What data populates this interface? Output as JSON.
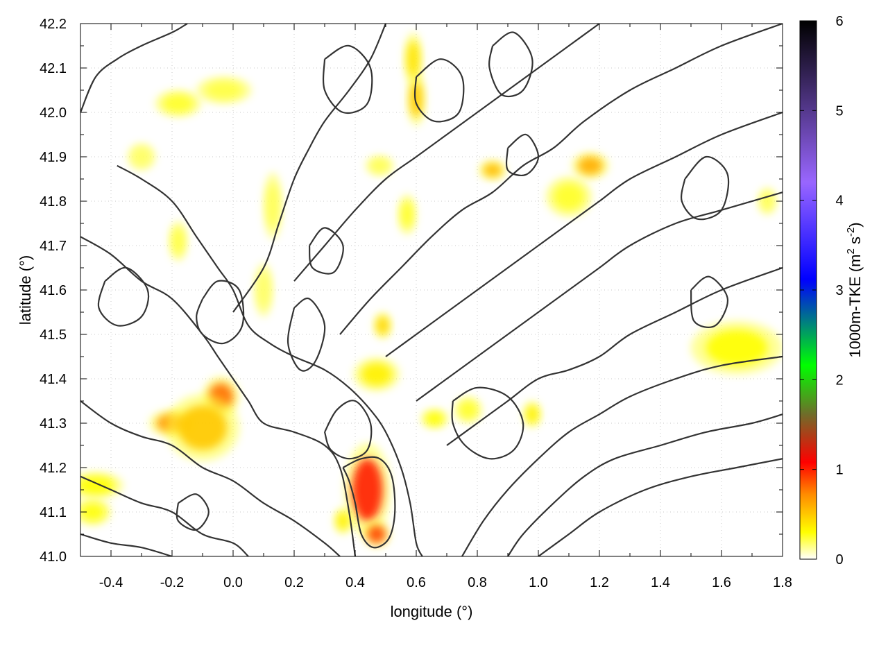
{
  "chart_data": {
    "type": "heatmap",
    "title": "",
    "xlabel": "longitude (°)",
    "ylabel": "latitude (°)",
    "colorbar_label_main": "1000m-TKE (m",
    "colorbar_label_exp1": "2",
    "colorbar_label_mid": " s",
    "colorbar_label_exp2": "-2",
    "colorbar_label_end": ")",
    "xlim": [
      -0.5,
      1.8
    ],
    "ylim": [
      41.0,
      42.2
    ],
    "clim": [
      0,
      6
    ],
    "grid": true,
    "xticks": [
      -0.4,
      -0.2,
      0.0,
      0.2,
      0.4,
      0.6,
      0.8,
      1.0,
      1.2,
      1.4,
      1.6,
      1.8
    ],
    "xtick_labels": [
      "-0.4",
      "-0.2",
      "0.0",
      "0.2",
      "0.4",
      "0.6",
      "0.8",
      "1.0",
      "1.2",
      "1.4",
      "1.6",
      "1.8"
    ],
    "yticks": [
      41.0,
      41.1,
      41.2,
      41.3,
      41.4,
      41.5,
      41.6,
      41.7,
      41.8,
      41.9,
      42.0,
      42.1,
      42.2
    ],
    "ytick_labels": [
      "41.0",
      "41.1",
      "41.2",
      "41.3",
      "41.4",
      "41.5",
      "41.6",
      "41.7",
      "41.8",
      "41.9",
      "42.0",
      "42.1",
      "42.2"
    ],
    "cticks": [
      0,
      1,
      2,
      3,
      4,
      5,
      6
    ],
    "ctick_labels": [
      "0",
      "1",
      "2",
      "3",
      "4",
      "5",
      "6"
    ],
    "colormap": [
      "#ffffff",
      "#ffff00",
      "#ff8c00",
      "#ff0000",
      "#6e6e2a",
      "#00ff00",
      "#0000ff",
      "#9966ff",
      "#000000"
    ],
    "contour_color": "#333333",
    "hotspots": [
      {
        "lon": 0.44,
        "lat": 41.15,
        "value": 1.0,
        "rx": 0.05,
        "ry": 0.07
      },
      {
        "lon": 0.47,
        "lat": 41.05,
        "value": 0.9,
        "rx": 0.03,
        "ry": 0.02
      },
      {
        "lon": -0.04,
        "lat": 41.36,
        "value": 0.8,
        "rx": 0.04,
        "ry": 0.03
      },
      {
        "lon": -0.2,
        "lat": 41.3,
        "value": 0.7,
        "rx": 0.05,
        "ry": 0.02
      },
      {
        "lon": -0.1,
        "lat": 41.29,
        "value": 0.5,
        "rx": 0.08,
        "ry": 0.05
      },
      {
        "lon": 1.17,
        "lat": 41.88,
        "value": 0.6,
        "rx": 0.04,
        "ry": 0.02
      },
      {
        "lon": 0.85,
        "lat": 41.87,
        "value": 0.55,
        "rx": 0.03,
        "ry": 0.015
      },
      {
        "lon": 0.6,
        "lat": 42.03,
        "value": 0.5,
        "rx": 0.02,
        "ry": 0.04
      },
      {
        "lon": 0.59,
        "lat": 42.12,
        "value": 0.4,
        "rx": 0.02,
        "ry": 0.04
      },
      {
        "lon": 0.49,
        "lat": 41.52,
        "value": 0.45,
        "rx": 0.02,
        "ry": 0.02
      },
      {
        "lon": 0.47,
        "lat": 41.41,
        "value": 0.35,
        "rx": 0.05,
        "ry": 0.025
      },
      {
        "lon": -0.45,
        "lat": 41.16,
        "value": 0.3,
        "rx": 0.06,
        "ry": 0.02
      },
      {
        "lon": -0.46,
        "lat": 41.1,
        "value": 0.28,
        "rx": 0.04,
        "ry": 0.02
      },
      {
        "lon": -0.18,
        "lat": 42.02,
        "value": 0.25,
        "rx": 0.05,
        "ry": 0.02
      },
      {
        "lon": -0.03,
        "lat": 42.05,
        "value": 0.22,
        "rx": 0.06,
        "ry": 0.02
      },
      {
        "lon": 1.1,
        "lat": 41.81,
        "value": 0.25,
        "rx": 0.05,
        "ry": 0.03
      },
      {
        "lon": 1.65,
        "lat": 41.47,
        "value": 0.3,
        "rx": 0.1,
        "ry": 0.04
      },
      {
        "lon": 0.98,
        "lat": 41.32,
        "value": 0.35,
        "rx": 0.02,
        "ry": 0.02
      },
      {
        "lon": 0.66,
        "lat": 41.31,
        "value": 0.3,
        "rx": 0.03,
        "ry": 0.015
      },
      {
        "lon": 0.57,
        "lat": 41.77,
        "value": 0.25,
        "rx": 0.02,
        "ry": 0.03
      },
      {
        "lon": 0.13,
        "lat": 41.79,
        "value": 0.2,
        "rx": 0.02,
        "ry": 0.05
      },
      {
        "lon": -0.18,
        "lat": 41.71,
        "value": 0.22,
        "rx": 0.02,
        "ry": 0.03
      },
      {
        "lon": 0.1,
        "lat": 41.6,
        "value": 0.18,
        "rx": 0.02,
        "ry": 0.04
      },
      {
        "lon": 0.36,
        "lat": 41.08,
        "value": 0.35,
        "rx": 0.02,
        "ry": 0.02
      },
      {
        "lon": 0.77,
        "lat": 41.33,
        "value": 0.25,
        "rx": 0.03,
        "ry": 0.02
      },
      {
        "lon": 0.48,
        "lat": 41.88,
        "value": 0.2,
        "rx": 0.03,
        "ry": 0.015
      },
      {
        "lon": -0.3,
        "lat": 41.9,
        "value": 0.18,
        "rx": 0.03,
        "ry": 0.02
      },
      {
        "lon": 1.75,
        "lat": 41.8,
        "value": 0.2,
        "rx": 0.02,
        "ry": 0.02
      }
    ],
    "contours": [
      [
        [
          -0.5,
          42.0
        ],
        [
          -0.45,
          42.08
        ],
        [
          -0.38,
          42.12
        ],
        [
          -0.3,
          42.15
        ],
        [
          -0.2,
          42.18
        ],
        [
          -0.15,
          42.2
        ]
      ],
      [
        [
          -0.38,
          41.88
        ],
        [
          -0.3,
          41.85
        ],
        [
          -0.2,
          41.8
        ],
        [
          -0.12,
          41.72
        ],
        [
          -0.05,
          41.65
        ],
        [
          0.0,
          41.6
        ],
        [
          0.05,
          41.52
        ],
        [
          0.12,
          41.48
        ],
        [
          0.2,
          41.45
        ],
        [
          0.3,
          41.42
        ],
        [
          0.38,
          41.38
        ],
        [
          0.45,
          41.33
        ],
        [
          0.5,
          41.28
        ],
        [
          0.55,
          41.2
        ],
        [
          0.58,
          41.12
        ],
        [
          0.6,
          41.03
        ],
        [
          0.62,
          41.0
        ]
      ],
      [
        [
          -0.5,
          41.72
        ],
        [
          -0.4,
          41.68
        ],
        [
          -0.3,
          41.62
        ],
        [
          -0.2,
          41.58
        ],
        [
          -0.1,
          41.5
        ],
        [
          -0.05,
          41.45
        ],
        [
          0.0,
          41.4
        ],
        [
          0.05,
          41.35
        ],
        [
          0.1,
          41.3
        ],
        [
          0.2,
          41.28
        ],
        [
          0.3,
          41.25
        ],
        [
          0.35,
          41.2
        ],
        [
          0.38,
          41.1
        ],
        [
          0.4,
          41.0
        ]
      ],
      [
        [
          -0.5,
          41.35
        ],
        [
          -0.4,
          41.3
        ],
        [
          -0.3,
          41.27
        ],
        [
          -0.2,
          41.25
        ],
        [
          -0.1,
          41.2
        ],
        [
          0.0,
          41.17
        ],
        [
          0.1,
          41.12
        ],
        [
          0.2,
          41.08
        ],
        [
          0.3,
          41.03
        ],
        [
          0.35,
          41.0
        ]
      ],
      [
        [
          -0.5,
          41.18
        ],
        [
          -0.4,
          41.15
        ],
        [
          -0.3,
          41.12
        ],
        [
          -0.2,
          41.1
        ],
        [
          -0.1,
          41.05
        ],
        [
          0.0,
          41.03
        ],
        [
          0.05,
          41.0
        ]
      ],
      [
        [
          -0.5,
          41.05
        ],
        [
          -0.4,
          41.03
        ],
        [
          -0.3,
          41.02
        ],
        [
          -0.2,
          41.0
        ]
      ],
      [
        [
          0.0,
          41.55
        ],
        [
          0.1,
          41.65
        ],
        [
          0.15,
          41.75
        ],
        [
          0.2,
          41.85
        ],
        [
          0.25,
          41.92
        ],
        [
          0.3,
          41.98
        ],
        [
          0.38,
          42.05
        ],
        [
          0.45,
          42.12
        ],
        [
          0.5,
          42.2
        ]
      ],
      [
        [
          0.2,
          41.62
        ],
        [
          0.3,
          41.7
        ],
        [
          0.4,
          41.78
        ],
        [
          0.5,
          41.85
        ],
        [
          0.6,
          41.9
        ],
        [
          0.7,
          41.95
        ],
        [
          0.8,
          42.0
        ],
        [
          0.9,
          42.05
        ],
        [
          1.0,
          42.1
        ],
        [
          1.1,
          42.15
        ],
        [
          1.2,
          42.2
        ]
      ],
      [
        [
          0.35,
          41.5
        ],
        [
          0.45,
          41.58
        ],
        [
          0.55,
          41.65
        ],
        [
          0.65,
          41.72
        ],
        [
          0.75,
          41.78
        ],
        [
          0.85,
          41.82
        ],
        [
          0.95,
          41.88
        ],
        [
          1.05,
          41.92
        ],
        [
          1.15,
          41.98
        ],
        [
          1.3,
          42.05
        ],
        [
          1.45,
          42.1
        ],
        [
          1.6,
          42.15
        ],
        [
          1.8,
          42.2
        ]
      ],
      [
        [
          0.5,
          41.45
        ],
        [
          0.6,
          41.5
        ],
        [
          0.7,
          41.55
        ],
        [
          0.8,
          41.6
        ],
        [
          0.9,
          41.65
        ],
        [
          1.0,
          41.7
        ],
        [
          1.1,
          41.75
        ],
        [
          1.2,
          41.8
        ],
        [
          1.3,
          41.85
        ],
        [
          1.45,
          41.9
        ],
        [
          1.6,
          41.95
        ],
        [
          1.8,
          42.0
        ]
      ],
      [
        [
          0.6,
          41.35
        ],
        [
          0.7,
          41.4
        ],
        [
          0.8,
          41.45
        ],
        [
          0.9,
          41.5
        ],
        [
          1.0,
          41.55
        ],
        [
          1.1,
          41.6
        ],
        [
          1.2,
          41.65
        ],
        [
          1.3,
          41.7
        ],
        [
          1.45,
          41.75
        ],
        [
          1.6,
          41.78
        ],
        [
          1.8,
          41.82
        ]
      ],
      [
        [
          0.7,
          41.25
        ],
        [
          0.8,
          41.3
        ],
        [
          0.9,
          41.35
        ],
        [
          1.0,
          41.4
        ],
        [
          1.1,
          41.42
        ],
        [
          1.2,
          41.45
        ],
        [
          1.3,
          41.5
        ],
        [
          1.45,
          41.55
        ],
        [
          1.6,
          41.6
        ],
        [
          1.8,
          41.65
        ]
      ],
      [
        [
          0.75,
          41.0
        ],
        [
          0.82,
          41.08
        ],
        [
          0.9,
          41.15
        ],
        [
          1.0,
          41.22
        ],
        [
          1.1,
          41.28
        ],
        [
          1.2,
          41.32
        ],
        [
          1.3,
          41.36
        ],
        [
          1.45,
          41.4
        ],
        [
          1.6,
          41.43
        ],
        [
          1.8,
          41.45
        ]
      ],
      [
        [
          0.9,
          41.0
        ],
        [
          0.95,
          41.05
        ],
        [
          1.05,
          41.12
        ],
        [
          1.15,
          41.18
        ],
        [
          1.25,
          41.22
        ],
        [
          1.4,
          41.25
        ],
        [
          1.55,
          41.28
        ],
        [
          1.7,
          41.3
        ],
        [
          1.8,
          41.32
        ]
      ],
      [
        [
          1.0,
          41.0
        ],
        [
          1.1,
          41.05
        ],
        [
          1.2,
          41.1
        ],
        [
          1.35,
          41.15
        ],
        [
          1.5,
          41.18
        ],
        [
          1.65,
          41.2
        ],
        [
          1.8,
          41.22
        ]
      ],
      [
        [
          0.3,
          41.28
        ],
        [
          0.34,
          41.33
        ],
        [
          0.4,
          41.35
        ],
        [
          0.45,
          41.3
        ],
        [
          0.44,
          41.24
        ],
        [
          0.38,
          41.22
        ],
        [
          0.32,
          41.24
        ],
        [
          0.3,
          41.28
        ]
      ],
      [
        [
          0.36,
          41.2
        ],
        [
          0.42,
          41.22
        ],
        [
          0.48,
          41.22
        ],
        [
          0.52,
          41.18
        ],
        [
          0.53,
          41.1
        ],
        [
          0.51,
          41.04
        ],
        [
          0.46,
          41.02
        ],
        [
          0.42,
          41.05
        ],
        [
          0.4,
          41.12
        ],
        [
          0.38,
          41.17
        ],
        [
          0.36,
          41.2
        ]
      ],
      [
        [
          0.72,
          41.35
        ],
        [
          0.8,
          41.38
        ],
        [
          0.9,
          41.36
        ],
        [
          0.95,
          41.3
        ],
        [
          0.92,
          41.24
        ],
        [
          0.84,
          41.22
        ],
        [
          0.76,
          41.25
        ],
        [
          0.72,
          41.3
        ],
        [
          0.72,
          41.35
        ]
      ],
      [
        [
          -0.42,
          41.62
        ],
        [
          -0.35,
          41.65
        ],
        [
          -0.28,
          41.6
        ],
        [
          -0.3,
          41.54
        ],
        [
          -0.38,
          41.52
        ],
        [
          -0.44,
          41.56
        ],
        [
          -0.42,
          41.62
        ]
      ],
      [
        [
          -0.1,
          41.58
        ],
        [
          -0.05,
          41.62
        ],
        [
          0.02,
          41.6
        ],
        [
          0.03,
          41.52
        ],
        [
          -0.03,
          41.48
        ],
        [
          -0.1,
          41.5
        ],
        [
          -0.12,
          41.54
        ],
        [
          -0.1,
          41.58
        ]
      ],
      [
        [
          0.2,
          41.56
        ],
        [
          0.25,
          41.58
        ],
        [
          0.3,
          41.52
        ],
        [
          0.27,
          41.44
        ],
        [
          0.22,
          41.42
        ],
        [
          0.18,
          41.48
        ],
        [
          0.2,
          41.56
        ]
      ],
      [
        [
          0.3,
          42.12
        ],
        [
          0.38,
          42.15
        ],
        [
          0.45,
          42.1
        ],
        [
          0.44,
          42.02
        ],
        [
          0.36,
          42.0
        ],
        [
          0.3,
          42.05
        ],
        [
          0.3,
          42.12
        ]
      ],
      [
        [
          0.6,
          42.08
        ],
        [
          0.68,
          42.12
        ],
        [
          0.75,
          42.08
        ],
        [
          0.74,
          42.0
        ],
        [
          0.66,
          41.98
        ],
        [
          0.6,
          42.02
        ],
        [
          0.6,
          42.08
        ]
      ],
      [
        [
          0.85,
          42.15
        ],
        [
          0.92,
          42.18
        ],
        [
          0.98,
          42.12
        ],
        [
          0.95,
          42.05
        ],
        [
          0.88,
          42.04
        ],
        [
          0.84,
          42.1
        ],
        [
          0.85,
          42.15
        ]
      ],
      [
        [
          1.48,
          41.85
        ],
        [
          1.55,
          41.9
        ],
        [
          1.62,
          41.86
        ],
        [
          1.6,
          41.78
        ],
        [
          1.52,
          41.76
        ],
        [
          1.47,
          41.8
        ],
        [
          1.48,
          41.85
        ]
      ],
      [
        [
          1.5,
          41.6
        ],
        [
          1.56,
          41.63
        ],
        [
          1.62,
          41.58
        ],
        [
          1.58,
          41.52
        ],
        [
          1.51,
          41.53
        ],
        [
          1.5,
          41.6
        ]
      ],
      [
        [
          0.9,
          41.92
        ],
        [
          0.96,
          41.95
        ],
        [
          1.0,
          41.9
        ],
        [
          0.96,
          41.86
        ],
        [
          0.9,
          41.87
        ],
        [
          0.9,
          41.92
        ]
      ],
      [
        [
          -0.18,
          41.12
        ],
        [
          -0.12,
          41.14
        ],
        [
          -0.08,
          41.1
        ],
        [
          -0.12,
          41.06
        ],
        [
          -0.18,
          41.08
        ],
        [
          -0.18,
          41.12
        ]
      ],
      [
        [
          0.25,
          41.7
        ],
        [
          0.3,
          41.74
        ],
        [
          0.36,
          41.7
        ],
        [
          0.33,
          41.64
        ],
        [
          0.26,
          41.65
        ],
        [
          0.25,
          41.7
        ]
      ]
    ]
  }
}
